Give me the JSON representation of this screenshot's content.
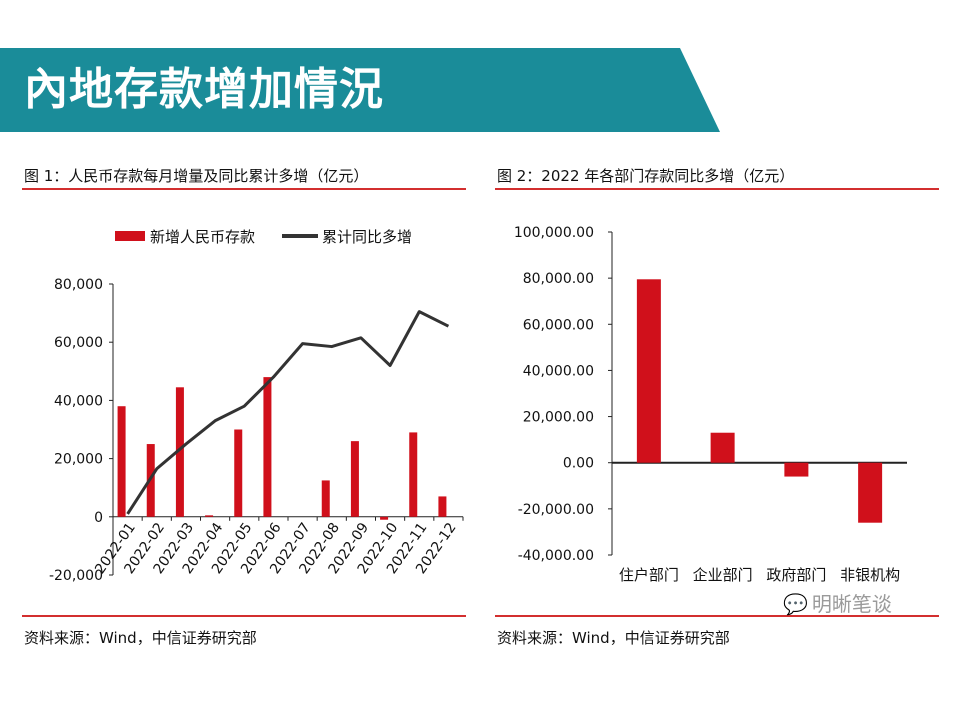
{
  "page": {
    "title": "內地存款增加情況"
  },
  "figure1": {
    "caption": "图 1：人民币存款每月增量及同比累计多增（亿元）",
    "source": "资料来源：Wind，中信证券研究部"
  },
  "figure2": {
    "caption": "图 2：2022 年各部门存款同比多增（亿元）",
    "source": "资料来源：Wind，中信证券研究部"
  },
  "watermark": {
    "text": "明晰笔谈",
    "icon": "wechat-icon"
  },
  "colors": {
    "banner": "#1a8c99",
    "bar": "#d0101b",
    "line": "#333333",
    "rule": "#d32f2f"
  },
  "chart_data": [
    {
      "type": "bar+line",
      "categories": [
        "2022-01",
        "2022-02",
        "2022-03",
        "2022-04",
        "2022-05",
        "2022-06",
        "2022-07",
        "2022-08",
        "2022-09",
        "2022-10",
        "2022-11",
        "2022-12"
      ],
      "series": [
        {
          "name": "新增人民币存款",
          "type": "bar",
          "values": [
            38000,
            25000,
            44500,
            500,
            30000,
            48000,
            0,
            12500,
            26000,
            -1000,
            29000,
            7000
          ]
        },
        {
          "name": "累计同比多增",
          "type": "line",
          "values": [
            1000,
            16500,
            25000,
            33000,
            38000,
            48000,
            59500,
            58500,
            61500,
            52000,
            70500,
            65500
          ]
        }
      ],
      "ylim": [
        -20000,
        80000
      ],
      "yticks": [
        "-20,000",
        "0",
        "20,000",
        "40,000",
        "60,000",
        "80,000"
      ],
      "legend_position": "top"
    },
    {
      "type": "bar",
      "categories": [
        "住户部门",
        "企业部门",
        "政府部门",
        "非银机构"
      ],
      "values": [
        79500,
        13000,
        -6000,
        -26000
      ],
      "ylim": [
        -40000,
        100000
      ],
      "yticks": [
        "-40,000.00",
        "-20,000.00",
        "0.00",
        "20,000.00",
        "40,000.00",
        "60,000.00",
        "80,000.00",
        "100,000.00"
      ]
    }
  ]
}
